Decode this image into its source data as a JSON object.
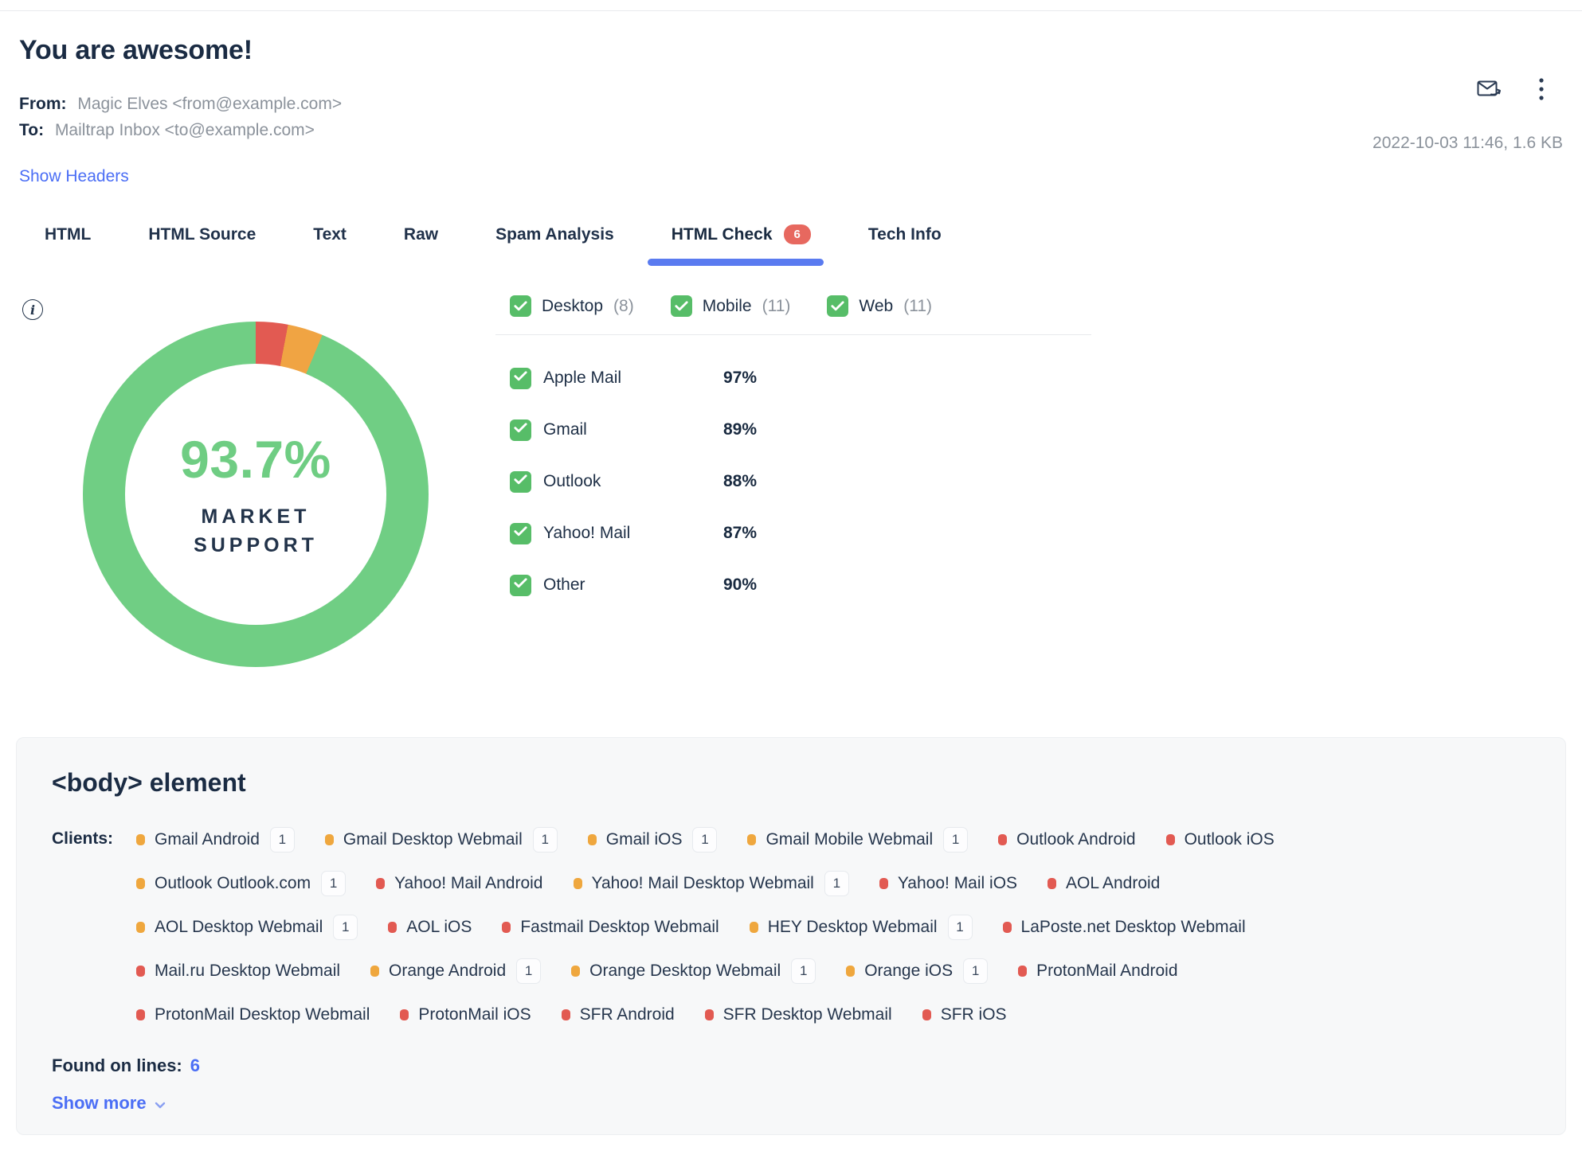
{
  "header": {
    "title": "You are awesome!",
    "from_label": "From:",
    "from_value": "Magic Elves <from@example.com>",
    "to_label": "To:",
    "to_value": "Mailtrap Inbox <to@example.com>",
    "show_headers_link": "Show Headers",
    "timestamp": "2022-10-03 11:46, 1.6 KB"
  },
  "tabs": [
    {
      "label": "HTML",
      "active": false
    },
    {
      "label": "HTML Source",
      "active": false
    },
    {
      "label": "Text",
      "active": false
    },
    {
      "label": "Raw",
      "active": false
    },
    {
      "label": "Spam Analysis",
      "active": false
    },
    {
      "label": "HTML Check",
      "badge": "6",
      "active": true
    },
    {
      "label": "Tech Info",
      "active": false
    }
  ],
  "html_check": {
    "donut": {
      "percent_label": "93.7%",
      "caption_line1": "MARKET",
      "caption_line2": "SUPPORT",
      "segments": [
        {
          "name": "unsupported",
          "color": "#e25a52",
          "value": 3.0
        },
        {
          "name": "partial",
          "color": "#f0a443",
          "value": 3.3
        },
        {
          "name": "supported",
          "color": "#70ce84",
          "value": 93.7
        }
      ]
    },
    "filters": [
      {
        "label": "Desktop",
        "count": "(8)",
        "checked": true
      },
      {
        "label": "Mobile",
        "count": "(11)",
        "checked": true
      },
      {
        "label": "Web",
        "count": "(11)",
        "checked": true
      }
    ],
    "clients": [
      {
        "name": "Apple Mail",
        "support": "97%",
        "checked": true
      },
      {
        "name": "Gmail",
        "support": "89%",
        "checked": true
      },
      {
        "name": "Outlook",
        "support": "88%",
        "checked": true
      },
      {
        "name": "Yahoo! Mail",
        "support": "87%",
        "checked": true
      },
      {
        "name": "Other",
        "support": "90%",
        "checked": true
      }
    ]
  },
  "body_element_card": {
    "title": "<body> element",
    "clients_label": "Clients:",
    "client_rows": [
      [
        {
          "name": "Gmail Android",
          "severity": "warning",
          "count": "1"
        },
        {
          "name": "Gmail Desktop Webmail",
          "severity": "warning",
          "count": "1"
        },
        {
          "name": "Gmail iOS",
          "severity": "warning",
          "count": "1"
        },
        {
          "name": "Gmail Mobile Webmail",
          "severity": "warning",
          "count": "1"
        },
        {
          "name": "Outlook Android",
          "severity": "error"
        },
        {
          "name": "Outlook iOS",
          "severity": "error"
        }
      ],
      [
        {
          "name": "Outlook Outlook.com",
          "severity": "warning",
          "count": "1"
        },
        {
          "name": "Yahoo! Mail Android",
          "severity": "error"
        },
        {
          "name": "Yahoo! Mail Desktop Webmail",
          "severity": "warning",
          "count": "1"
        },
        {
          "name": "Yahoo! Mail iOS",
          "severity": "error"
        },
        {
          "name": "AOL Android",
          "severity": "error"
        }
      ],
      [
        {
          "name": "AOL Desktop Webmail",
          "severity": "warning",
          "count": "1"
        },
        {
          "name": "AOL iOS",
          "severity": "error"
        },
        {
          "name": "Fastmail Desktop Webmail",
          "severity": "error"
        },
        {
          "name": "HEY Desktop Webmail",
          "severity": "warning",
          "count": "1"
        },
        {
          "name": "LaPoste.net Desktop Webmail",
          "severity": "error"
        }
      ],
      [
        {
          "name": "Mail.ru Desktop Webmail",
          "severity": "error"
        },
        {
          "name": "Orange Android",
          "severity": "warning",
          "count": "1"
        },
        {
          "name": "Orange Desktop Webmail",
          "severity": "warning",
          "count": "1"
        },
        {
          "name": "Orange iOS",
          "severity": "warning",
          "count": "1"
        },
        {
          "name": "ProtonMail Android",
          "severity": "error"
        }
      ],
      [
        {
          "name": "ProtonMail Desktop Webmail",
          "severity": "error"
        },
        {
          "name": "ProtonMail iOS",
          "severity": "error"
        },
        {
          "name": "SFR Android",
          "severity": "error"
        },
        {
          "name": "SFR Desktop Webmail",
          "severity": "error"
        },
        {
          "name": "SFR iOS",
          "severity": "error"
        }
      ]
    ],
    "found_on_lines_label": "Found on lines:",
    "found_on_lines_value": "6",
    "show_more_label": "Show more"
  },
  "colors": {
    "accent_blue": "#4b6ef5",
    "tab_underline": "#5a7bf0",
    "badge_red": "#e7685f",
    "checkbox_green": "#57bd68",
    "donut_green": "#70ce84",
    "donut_orange": "#f0a443",
    "donut_red": "#e25a52",
    "dot_warning": "#efa73e",
    "dot_error": "#e25a52",
    "text_dark": "#1a2b43",
    "text_gray": "#8b929b",
    "card_bg": "#f7f8f9"
  }
}
